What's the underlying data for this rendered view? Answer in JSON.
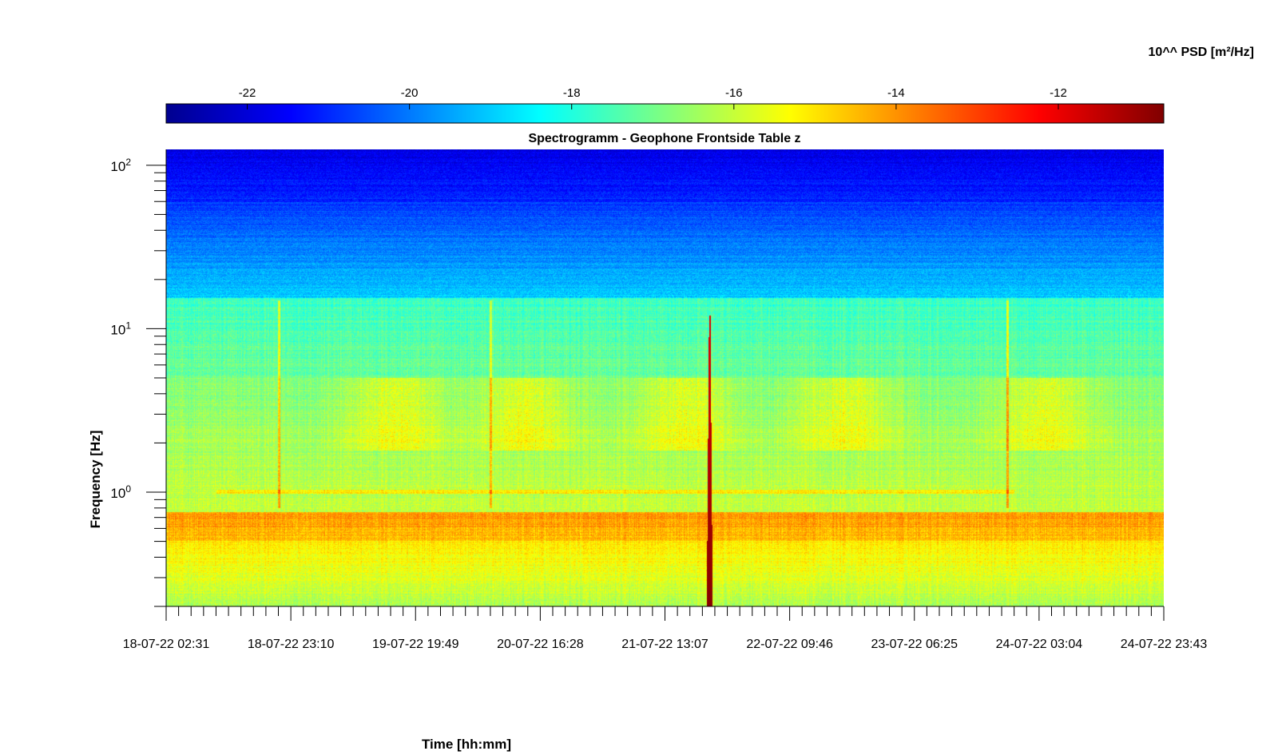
{
  "chart_data": {
    "type": "heatmap",
    "title": "Spectrogramm - Geophone Frontside Table z",
    "xlabel": "Time [hh:mm]",
    "ylabel": "Frequency [Hz]",
    "x_ticks": [
      "18-07-22 02:31",
      "18-07-22 23:10",
      "19-07-22 19:49",
      "20-07-22 16:28",
      "21-07-22 13:07",
      "22-07-22 09:46",
      "23-07-22 06:25",
      "24-07-22 03:04",
      "24-07-22 23:43"
    ],
    "xlim": [
      "18-07-22 02:31",
      "24-07-22 23:43"
    ],
    "y_scale": "log",
    "ylim": [
      0.2,
      125
    ],
    "y_ticks": [
      {
        "value": 1,
        "base": "10",
        "exp": "0"
      },
      {
        "value": 10,
        "base": "10",
        "exp": "1"
      },
      {
        "value": 100,
        "base": "10",
        "exp": "2"
      }
    ],
    "colorbar": {
      "label": "10^^ PSD [m²/Hz]",
      "colormap": "jet",
      "range": [
        -23,
        -10.7
      ],
      "ticks": [
        "-22",
        "-20",
        "-18",
        "-16",
        "-14",
        "-12"
      ],
      "tick_values": [
        -22,
        -20,
        -18,
        -16,
        -14,
        -12
      ],
      "location": "top"
    },
    "features": [
      {
        "x": "21-07-22 13:07 + 0.43 day",
        "freq_range": [
          0.2,
          10
        ],
        "level": -11.5
      },
      {
        "x": "18-07-22 23:10 + 0.0 day",
        "freq_range": [
          0.8,
          20
        ],
        "level": -13.5
      },
      {
        "x": "24-07-22 03:04 - 0.2 day",
        "freq_range": [
          0.8,
          20
        ],
        "level": -13.5
      }
    ]
  }
}
